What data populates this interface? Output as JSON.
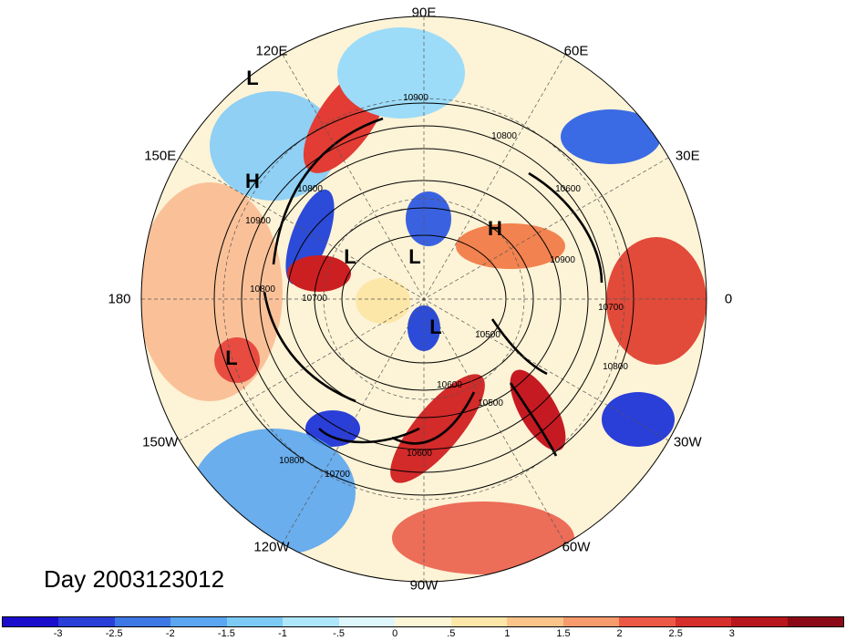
{
  "map": {
    "longitude_labels": [
      {
        "text": "90E",
        "dir": 90
      },
      {
        "text": "60E",
        "dir": 60
      },
      {
        "text": "30E",
        "dir": 30
      },
      {
        "text": "0",
        "dir": 0
      },
      {
        "text": "30W",
        "dir": -30
      },
      {
        "text": "60W",
        "dir": -60
      },
      {
        "text": "90W",
        "dir": -90
      },
      {
        "text": "120W",
        "dir": -120
      },
      {
        "text": "150W",
        "dir": -150
      },
      {
        "text": "180",
        "dir": 180
      },
      {
        "text": "150E",
        "dir": 150
      },
      {
        "text": "120E",
        "dir": 120
      }
    ],
    "pressure_markers": [
      {
        "text": "L",
        "label": "low"
      },
      {
        "text": "H",
        "label": "high"
      },
      {
        "text": "L",
        "label": "low"
      },
      {
        "text": "L",
        "label": "low"
      },
      {
        "text": "H",
        "label": "high"
      },
      {
        "text": "L",
        "label": "low"
      },
      {
        "text": "L",
        "label": "low"
      }
    ],
    "contour_labels": [
      "10900",
      "10800",
      "10800",
      "10900",
      "10800",
      "10700",
      "10600",
      "10500",
      "10600",
      "10700",
      "10800",
      "10800",
      "10900",
      "10700",
      "10600",
      "10500"
    ]
  },
  "day_label": "Day 2003123012",
  "colorbar": {
    "colors": [
      "#1a0dcc",
      "#2a3ed8",
      "#3e78e6",
      "#5aa6f0",
      "#7dcaf6",
      "#aee6fa",
      "#dff6fd",
      "#fdf7d8",
      "#fde7a8",
      "#fdc489",
      "#f79a6c",
      "#ec5a46",
      "#d7302c",
      "#b8161d",
      "#8c0a17"
    ],
    "ticks": [
      "-3",
      "-2.5",
      "-2",
      "-1.5",
      "-1",
      "-.5",
      "0",
      ".5",
      "1",
      "1.5",
      "2",
      "2.5",
      "3"
    ]
  }
}
